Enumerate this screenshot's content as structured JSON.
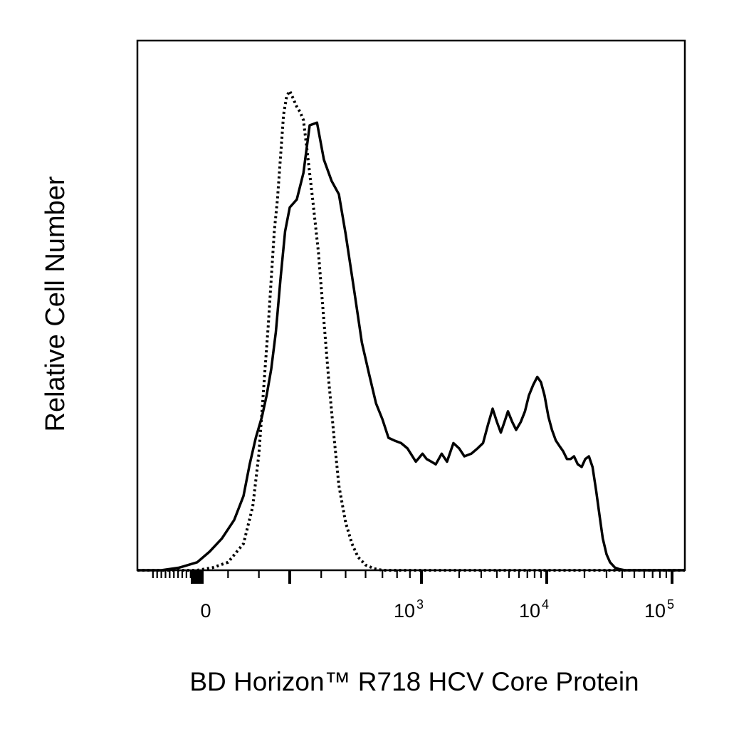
{
  "chart_data": {
    "type": "line",
    "title": "",
    "xlabel": "BD Horizon™ R718 HCV Core Protein",
    "ylabel": "Relative Cell Number",
    "x_scale": "biexponential",
    "xlim": [
      -200,
      250000
    ],
    "ylim": [
      0,
      100
    ],
    "grid": false,
    "legend": "none",
    "x_ticks": [
      {
        "base": "0",
        "exp": "",
        "value": 0
      },
      {
        "base": "10",
        "exp": "3",
        "value": 1000
      },
      {
        "base": "10",
        "exp": "4",
        "value": 10000
      },
      {
        "base": "10",
        "exp": "5",
        "value": 100000
      }
    ],
    "series": [
      {
        "style": "solid",
        "color": "#000000",
        "x": [
          -200,
          -120,
          -60,
          0,
          40,
          80,
          120,
          150,
          170,
          190,
          210,
          225,
          240,
          255,
          270,
          285,
          300,
          320,
          340,
          360,
          385,
          410,
          440,
          470,
          500,
          540,
          580,
          620,
          660,
          700,
          740,
          780,
          830,
          880,
          950,
          1020,
          1100,
          1200,
          1300,
          1450,
          1600,
          1800,
          2000,
          2200,
          2500,
          2800,
          3100,
          3400,
          3700,
          4000,
          4300,
          4600,
          4900,
          5300,
          5700,
          6200,
          6700,
          7200,
          7800,
          8400,
          9000,
          9600,
          10300,
          11000,
          11800,
          12600,
          13500,
          14500,
          15500,
          16500,
          17700,
          19000,
          20300,
          21700,
          23200,
          24800,
          26500,
          28000,
          30000,
          32000,
          35000,
          38000,
          42000,
          47000,
          55000,
          65000,
          80000,
          100000,
          130000,
          170000,
          250000
        ],
        "y": [
          0,
          0,
          0.5,
          1.5,
          3.5,
          6,
          9.5,
          14,
          20,
          25,
          29,
          33,
          38,
          45,
          55,
          64,
          68.5,
          70,
          75,
          84,
          84.5,
          77.5,
          73.5,
          71,
          63.5,
          53,
          43,
          37,
          31.5,
          28.5,
          25,
          24.5,
          24,
          23,
          20.5,
          22,
          21,
          20.5,
          20,
          22,
          20.5,
          24,
          23,
          21.5,
          22,
          23,
          24,
          27.5,
          30.5,
          28,
          26,
          28,
          30,
          28,
          26.5,
          28,
          30,
          33,
          35,
          36.5,
          35.5,
          33,
          29,
          26.5,
          24.5,
          23.5,
          22.5,
          21,
          21,
          21.5,
          20,
          19.5,
          21,
          21.5,
          19.5,
          15,
          10,
          6,
          3,
          1.5,
          0.5,
          0.2,
          0,
          0,
          0,
          0,
          0,
          0,
          0,
          0,
          0
        ]
      },
      {
        "style": "dotted",
        "color": "#000000",
        "x": [
          -200,
          -100,
          0,
          50,
          100,
          150,
          180,
          200,
          210,
          220,
          230,
          240,
          250,
          260,
          270,
          280,
          290,
          300,
          310,
          320,
          330,
          340,
          350,
          370,
          390,
          410,
          430,
          450,
          470,
          500,
          530,
          560,
          600,
          650,
          700,
          800,
          1000,
          2000,
          10000,
          100000,
          250000
        ],
        "y": [
          0,
          0,
          0,
          0.5,
          1.5,
          5,
          12,
          22,
          30,
          38,
          46,
          55,
          64,
          70,
          78,
          86,
          89.5,
          90.5,
          89,
          87.5,
          86.5,
          85,
          80,
          70,
          60,
          47,
          35,
          25,
          16,
          9,
          5,
          2.5,
          1,
          0.3,
          0,
          0,
          0,
          0,
          0,
          0,
          0
        ]
      }
    ]
  }
}
